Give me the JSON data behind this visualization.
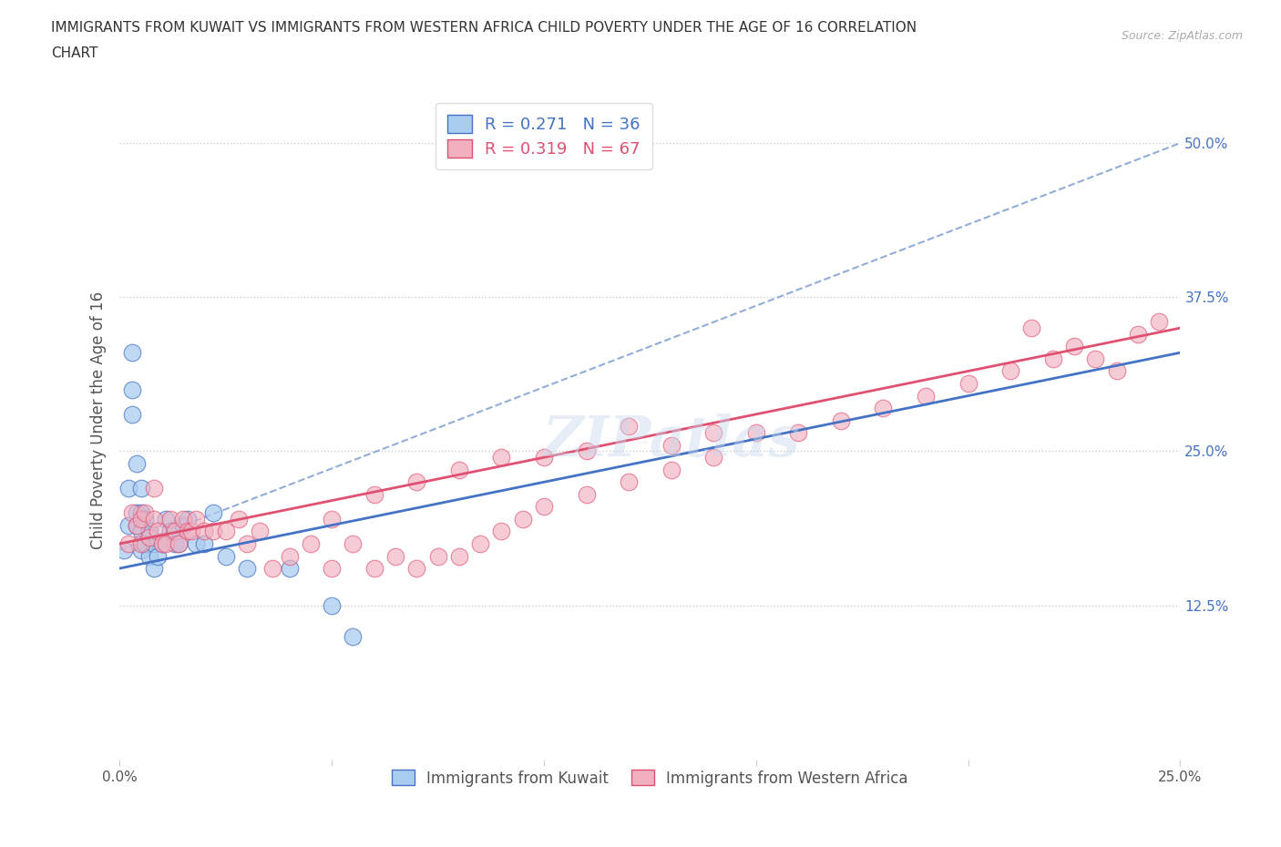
{
  "title_line1": "IMMIGRANTS FROM KUWAIT VS IMMIGRANTS FROM WESTERN AFRICA CHILD POVERTY UNDER THE AGE OF 16 CORRELATION",
  "title_line2": "CHART",
  "source": "Source: ZipAtlas.com",
  "ylabel": "Child Poverty Under the Age of 16",
  "xlim": [
    0,
    0.25
  ],
  "ylim": [
    0,
    0.55
  ],
  "xtick_positions": [
    0,
    0.05,
    0.1,
    0.15,
    0.2,
    0.25
  ],
  "xtick_labels": [
    "0.0%",
    "",
    "",
    "",
    "",
    "25.0%"
  ],
  "ytick_positions": [
    0.125,
    0.25,
    0.375,
    0.5
  ],
  "ytick_labels": [
    "12.5%",
    "25.0%",
    "37.5%",
    "50.0%"
  ],
  "R_kuwait": "0.271",
  "N_kuwait": "36",
  "R_west_africa": "0.319",
  "N_west_africa": "67",
  "color_kuwait": "#aaccf0",
  "color_west_africa": "#f0b0c0",
  "trendline_kuwait_color": "#4472c4",
  "trendline_west_africa_color": "#e05070",
  "trendline_dashed_color": "#7799cc",
  "watermark": "ZIPatlas",
  "gridline_color": "#cccccc",
  "legend_text_color_1": "#4472c4",
  "legend_text_color_2": "#e05070",
  "kuwait_x": [
    0.001,
    0.002,
    0.002,
    0.003,
    0.003,
    0.003,
    0.004,
    0.004,
    0.004,
    0.005,
    0.005,
    0.005,
    0.005,
    0.006,
    0.006,
    0.006,
    0.007,
    0.007,
    0.008,
    0.008,
    0.009,
    0.01,
    0.011,
    0.012,
    0.013,
    0.014,
    0.015,
    0.016,
    0.018,
    0.02,
    0.022,
    0.025,
    0.03,
    0.04,
    0.05,
    0.055
  ],
  "kuwait_y": [
    0.17,
    0.19,
    0.22,
    0.28,
    0.3,
    0.33,
    0.2,
    0.24,
    0.19,
    0.22,
    0.2,
    0.185,
    0.17,
    0.175,
    0.195,
    0.175,
    0.165,
    0.185,
    0.175,
    0.155,
    0.165,
    0.175,
    0.195,
    0.185,
    0.175,
    0.175,
    0.19,
    0.195,
    0.175,
    0.175,
    0.2,
    0.165,
    0.155,
    0.155,
    0.125,
    0.1
  ],
  "west_africa_x": [
    0.002,
    0.003,
    0.004,
    0.005,
    0.005,
    0.006,
    0.007,
    0.008,
    0.008,
    0.009,
    0.01,
    0.011,
    0.012,
    0.013,
    0.014,
    0.015,
    0.016,
    0.017,
    0.018,
    0.02,
    0.022,
    0.025,
    0.028,
    0.03,
    0.033,
    0.036,
    0.04,
    0.045,
    0.05,
    0.055,
    0.06,
    0.065,
    0.07,
    0.075,
    0.08,
    0.085,
    0.09,
    0.095,
    0.1,
    0.11,
    0.12,
    0.13,
    0.14,
    0.15,
    0.16,
    0.17,
    0.18,
    0.19,
    0.2,
    0.21,
    0.215,
    0.22,
    0.225,
    0.23,
    0.235,
    0.24,
    0.245,
    0.05,
    0.06,
    0.07,
    0.08,
    0.09,
    0.1,
    0.11,
    0.12,
    0.13,
    0.14
  ],
  "west_africa_y": [
    0.175,
    0.2,
    0.19,
    0.175,
    0.195,
    0.2,
    0.18,
    0.195,
    0.22,
    0.185,
    0.175,
    0.175,
    0.195,
    0.185,
    0.175,
    0.195,
    0.185,
    0.185,
    0.195,
    0.185,
    0.185,
    0.185,
    0.195,
    0.175,
    0.185,
    0.155,
    0.165,
    0.175,
    0.155,
    0.175,
    0.155,
    0.165,
    0.155,
    0.165,
    0.165,
    0.175,
    0.185,
    0.195,
    0.205,
    0.215,
    0.225,
    0.235,
    0.245,
    0.265,
    0.265,
    0.275,
    0.285,
    0.295,
    0.305,
    0.315,
    0.35,
    0.325,
    0.335,
    0.325,
    0.315,
    0.345,
    0.355,
    0.195,
    0.215,
    0.225,
    0.235,
    0.245,
    0.245,
    0.25,
    0.27,
    0.255,
    0.265
  ]
}
